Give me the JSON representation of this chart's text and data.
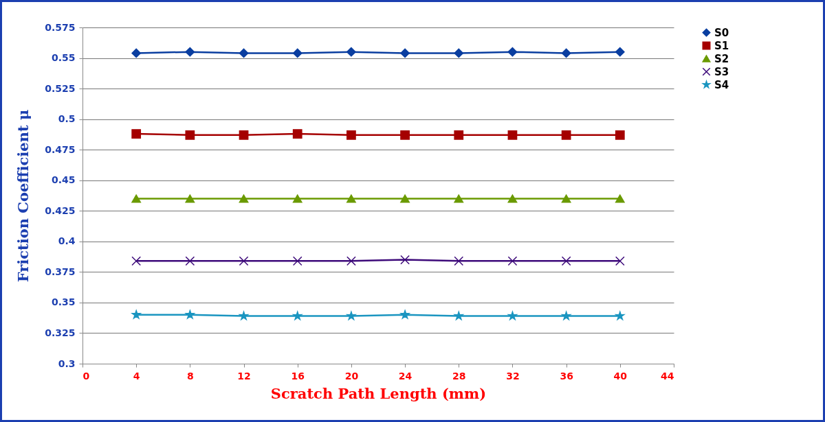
{
  "chart_data": {
    "type": "line",
    "xlabel": "Scratch Path Length (mm)",
    "ylabel": "Friction Coefficient μ",
    "x": [
      4,
      8,
      12,
      16,
      20,
      24,
      28,
      32,
      36,
      40
    ],
    "xlim": [
      0,
      44
    ],
    "xticks": [
      0,
      4,
      8,
      12,
      16,
      20,
      24,
      28,
      32,
      36,
      40,
      44
    ],
    "ylim": [
      0.3,
      0.575
    ],
    "yticks": [
      0.3,
      0.325,
      0.35,
      0.375,
      0.4,
      0.425,
      0.45,
      0.475,
      0.5,
      0.525,
      0.55,
      0.575
    ],
    "grid": "y",
    "legend": "right",
    "series": [
      {
        "name": "S0",
        "color": "#0a3ea0",
        "marker": "diamond",
        "values": [
          0.554,
          0.555,
          0.554,
          0.554,
          0.555,
          0.554,
          0.554,
          0.555,
          0.554,
          0.555
        ]
      },
      {
        "name": "S1",
        "color": "#a50000",
        "marker": "square",
        "values": [
          0.488,
          0.487,
          0.487,
          0.488,
          0.487,
          0.487,
          0.487,
          0.487,
          0.487,
          0.487
        ]
      },
      {
        "name": "S2",
        "color": "#6a9a00",
        "marker": "triangle",
        "values": [
          0.435,
          0.435,
          0.435,
          0.435,
          0.435,
          0.435,
          0.435,
          0.435,
          0.435,
          0.435
        ]
      },
      {
        "name": "S3",
        "color": "#3d0a7a",
        "marker": "cross",
        "values": [
          0.384,
          0.384,
          0.384,
          0.384,
          0.384,
          0.385,
          0.384,
          0.384,
          0.384,
          0.384
        ]
      },
      {
        "name": "S4",
        "color": "#1a95c0",
        "marker": "star",
        "values": [
          0.34,
          0.34,
          0.339,
          0.339,
          0.339,
          0.34,
          0.339,
          0.339,
          0.339,
          0.339
        ]
      }
    ]
  }
}
